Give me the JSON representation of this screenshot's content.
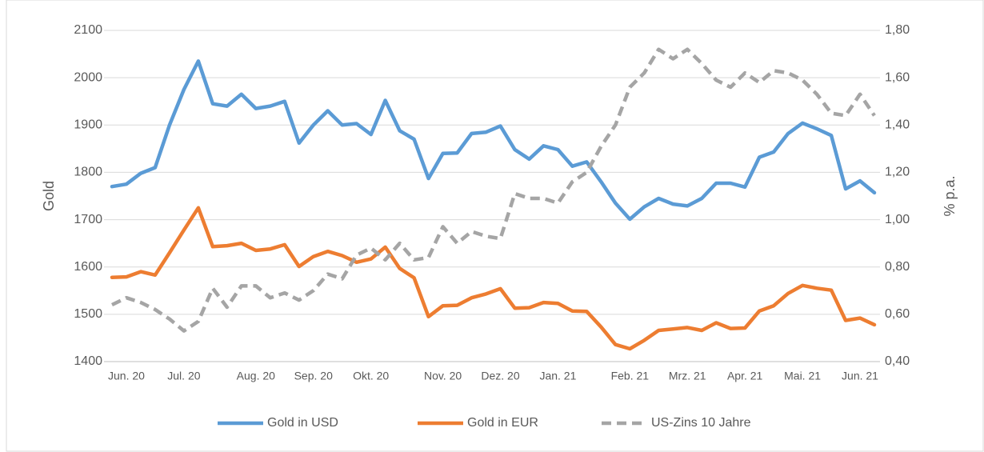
{
  "chart_data": {
    "type": "line",
    "categories": [
      null,
      "Jun. 20",
      null,
      null,
      null,
      "Jul. 20",
      null,
      null,
      null,
      null,
      "Aug. 20",
      null,
      null,
      null,
      "Sep. 20",
      null,
      null,
      null,
      "Okt. 20",
      null,
      null,
      null,
      null,
      "Nov. 20",
      null,
      null,
      null,
      "Dez. 20",
      null,
      null,
      null,
      "Jan. 21",
      null,
      null,
      null,
      null,
      "Feb. 21",
      null,
      null,
      null,
      "Mrz. 21",
      null,
      null,
      null,
      "Apr. 21",
      null,
      null,
      null,
      "Mai. 21",
      null,
      null,
      null,
      "Jun. 21",
      null
    ],
    "series": [
      {
        "name": "Gold in USD",
        "color": "#5b9bd5",
        "axis": "y",
        "values": [
          1770,
          1775,
          1798,
          1810,
          1900,
          1975,
          2035,
          1945,
          1940,
          1965,
          1935,
          1940,
          1950,
          1862,
          1900,
          1930,
          1900,
          1903,
          1880,
          1952,
          1888,
          1870,
          1787,
          1840,
          1841,
          1882,
          1885,
          1898,
          1848,
          1828,
          1856,
          1848,
          1813,
          1822,
          1780,
          1735,
          1701,
          1727,
          1745,
          1733,
          1729,
          1745,
          1777,
          1777,
          1769,
          1832,
          1843,
          1882,
          1904,
          1892,
          1878,
          1765,
          1782,
          1757
        ]
      },
      {
        "name": "Gold in EUR",
        "color": "#ed7d31",
        "axis": "y",
        "values": [
          1578,
          1579,
          1590,
          1583,
          1630,
          1678,
          1725,
          1643,
          1645,
          1650,
          1635,
          1638,
          1647,
          1601,
          1622,
          1633,
          1624,
          1610,
          1617,
          1642,
          1597,
          1577,
          1495,
          1518,
          1519,
          1535,
          1543,
          1554,
          1513,
          1514,
          1525,
          1523,
          1507,
          1506,
          1473,
          1436,
          1427,
          1445,
          1466,
          1469,
          1472,
          1466,
          1482,
          1470,
          1471,
          1507,
          1518,
          1544,
          1561,
          1555,
          1551,
          1487,
          1492,
          1478
        ]
      },
      {
        "name": "US-Zins 10 Jahre",
        "color": "#a5a5a5",
        "axis": "y2",
        "dashed": true,
        "values": [
          0.64,
          0.67,
          0.65,
          0.62,
          0.58,
          0.53,
          0.57,
          0.71,
          0.63,
          0.72,
          0.72,
          0.67,
          0.69,
          0.66,
          0.7,
          0.77,
          0.75,
          0.85,
          0.88,
          0.83,
          0.9,
          0.83,
          0.84,
          0.97,
          0.9,
          0.95,
          0.93,
          0.92,
          1.11,
          1.09,
          1.09,
          1.07,
          1.16,
          1.2,
          1.31,
          1.4,
          1.56,
          1.62,
          1.72,
          1.68,
          1.72,
          1.66,
          1.59,
          1.56,
          1.62,
          1.58,
          1.63,
          1.62,
          1.59,
          1.53,
          1.45,
          1.44,
          1.53,
          1.44
        ]
      }
    ],
    "ylabel": "Gold",
    "y2label": "% p.a.",
    "ylim": [
      1400,
      2100
    ],
    "yticks": [
      1400,
      1500,
      1600,
      1700,
      1800,
      1900,
      2000,
      2100
    ],
    "y2lim": [
      0.4,
      1.8
    ],
    "y2ticks": [
      {
        "value": 0.4,
        "label": "0,40"
      },
      {
        "value": 0.6,
        "label": "0,60"
      },
      {
        "value": 0.8,
        "label": "0,80"
      },
      {
        "value": 1.0,
        "label": "1,00"
      },
      {
        "value": 1.2,
        "label": "1,20"
      },
      {
        "value": 1.4,
        "label": "1,40"
      },
      {
        "value": 1.6,
        "label": "1,60"
      },
      {
        "value": 1.8,
        "label": "1,80"
      }
    ],
    "grid": true,
    "legend": "bottom"
  }
}
